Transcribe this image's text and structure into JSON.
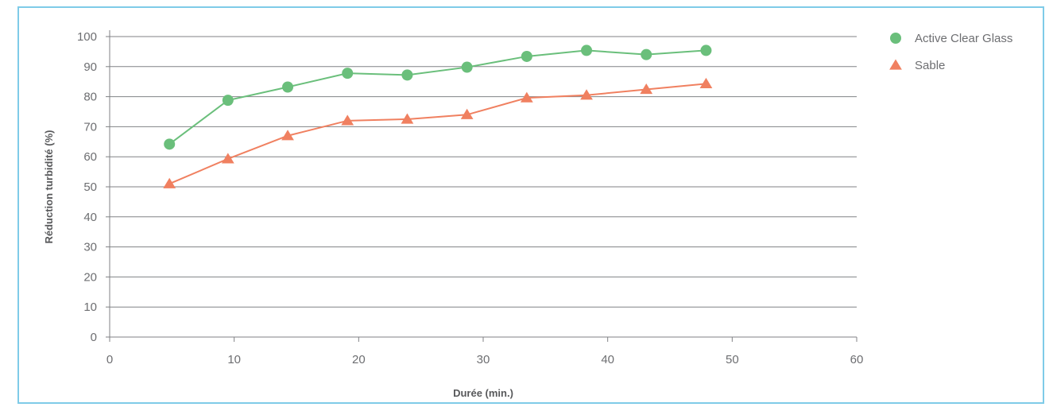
{
  "chart_data": {
    "type": "line",
    "xlabel": "Durée (min.)",
    "ylabel": "Réduction turbidité (%)",
    "xlim": [
      0,
      60
    ],
    "ylim": [
      0,
      100
    ],
    "xticks": [
      0,
      10,
      20,
      30,
      40,
      50,
      60
    ],
    "yticks": [
      0,
      10,
      20,
      30,
      40,
      50,
      60,
      70,
      80,
      90,
      100
    ],
    "grid": "horizontal",
    "legend_position": "top-right",
    "series": [
      {
        "name": "Active Clear Glass",
        "marker": "circle",
        "color": "#6abf7b",
        "x": [
          4.8,
          9.5,
          14.3,
          19.1,
          23.9,
          28.7,
          33.5,
          38.3,
          43.1,
          47.9
        ],
        "y": [
          64.2,
          78.8,
          83.2,
          87.8,
          87.2,
          89.8,
          93.4,
          95.4,
          94.0,
          95.4
        ]
      },
      {
        "name": "Sable",
        "marker": "triangle",
        "color": "#f08060",
        "x": [
          4.8,
          9.5,
          14.3,
          19.1,
          23.9,
          28.7,
          33.5,
          38.3,
          43.1,
          47.9
        ],
        "y": [
          51.0,
          59.3,
          67.0,
          72.0,
          72.5,
          74.0,
          79.6,
          80.5,
          82.4,
          84.3
        ]
      }
    ]
  }
}
